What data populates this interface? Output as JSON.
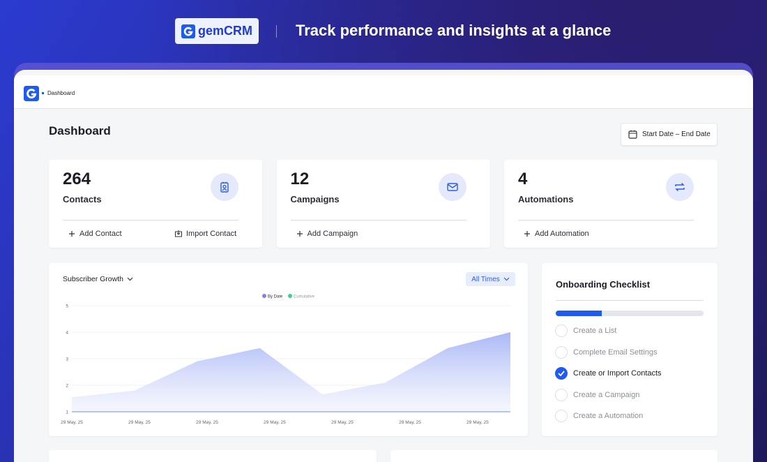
{
  "header": {
    "logo": "gemCRM",
    "tagline": "Track performance and insights at a glance"
  },
  "app": {
    "breadcrumb": "Dashboard"
  },
  "page": {
    "title": "Dashboard",
    "date_range": "Start Date – End Date"
  },
  "stats": [
    {
      "value": 264,
      "label": "Contacts",
      "actions": [
        "Add Contact",
        "Import Contact"
      ]
    },
    {
      "value": 12,
      "label": "Campaigns",
      "actions": [
        "Add Campaign"
      ]
    },
    {
      "value": 4,
      "label": "Automations",
      "actions": [
        "Add Automation"
      ]
    }
  ],
  "chart_data": {
    "type": "area",
    "title": "Subscriber Growth",
    "filter": "All Times",
    "x": [
      "29 May, 25",
      "29 May, 25",
      "29 May, 25",
      "29 May, 25",
      "29 May, 25",
      "29 May, 25",
      "29 May, 25",
      null
    ],
    "series": [
      {
        "name": "By Date",
        "color": "#8b7cf0",
        "values": [
          1.55,
          1.8,
          2.9,
          3.4,
          1.65,
          2.1,
          3.4,
          4.0
        ]
      }
    ],
    "legend_off": [
      {
        "name": "Cumulative",
        "color": "#3ecf8e"
      }
    ],
    "ylim": [
      1,
      5
    ],
    "yticks": [
      1,
      2,
      3,
      4,
      5
    ],
    "grid": true
  },
  "checklist": {
    "title": "Onboarding Checklist",
    "progress": 31,
    "items": [
      {
        "label": "Create a List",
        "done": false
      },
      {
        "label": "Complete Email Settings",
        "done": false
      },
      {
        "label": "Create or Import Contacts",
        "done": true
      },
      {
        "label": "Create a Campaign",
        "done": false
      },
      {
        "label": "Create a Automation",
        "done": false
      }
    ]
  }
}
